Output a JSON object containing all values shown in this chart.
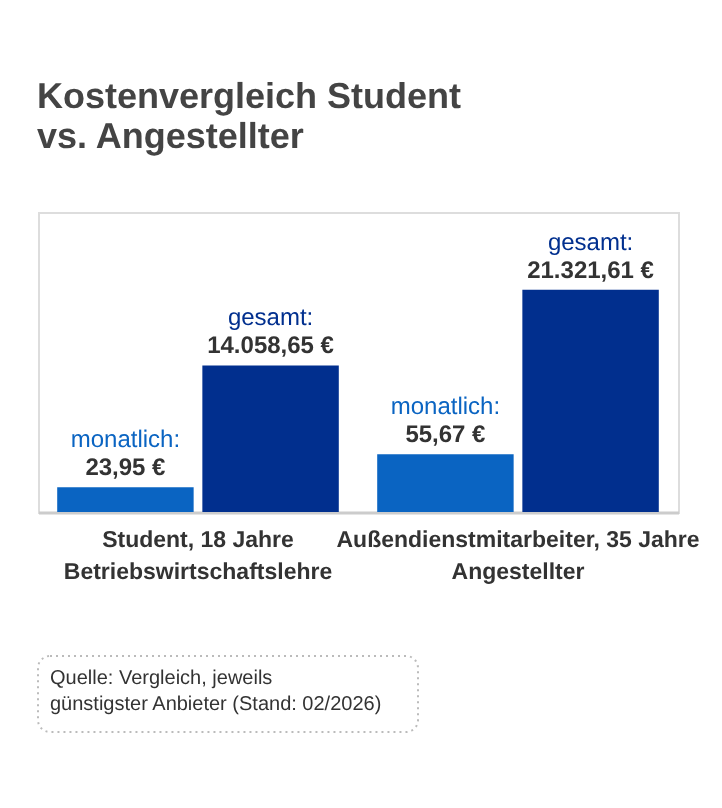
{
  "chart_data": {
    "type": "bar",
    "title": "Kostenvergleich Student\nvs. Angestellter",
    "categories": [
      "Student, 18 Jahre\nBetriebswirtschaftslehre",
      "Außendienstmitarbeiter, 35 Jahre\nAngestellter"
    ],
    "series": [
      {
        "name": "monatlich:",
        "color": "#0a64c2",
        "axis": "y2",
        "values": [
          23.95,
          55.67
        ],
        "value_labels": [
          "23,95 €",
          "55,67 €"
        ]
      },
      {
        "name": "gesamt:",
        "color": "#012f8e",
        "values": [
          14058.65,
          21321.61
        ],
        "value_labels": [
          "14.058,65 €",
          "21.321,61 €"
        ]
      }
    ],
    "annotations": [
      "Quelle: Vergleich, jeweils\ngünstigster Anbieter (Stand: 02/2026)"
    ]
  }
}
